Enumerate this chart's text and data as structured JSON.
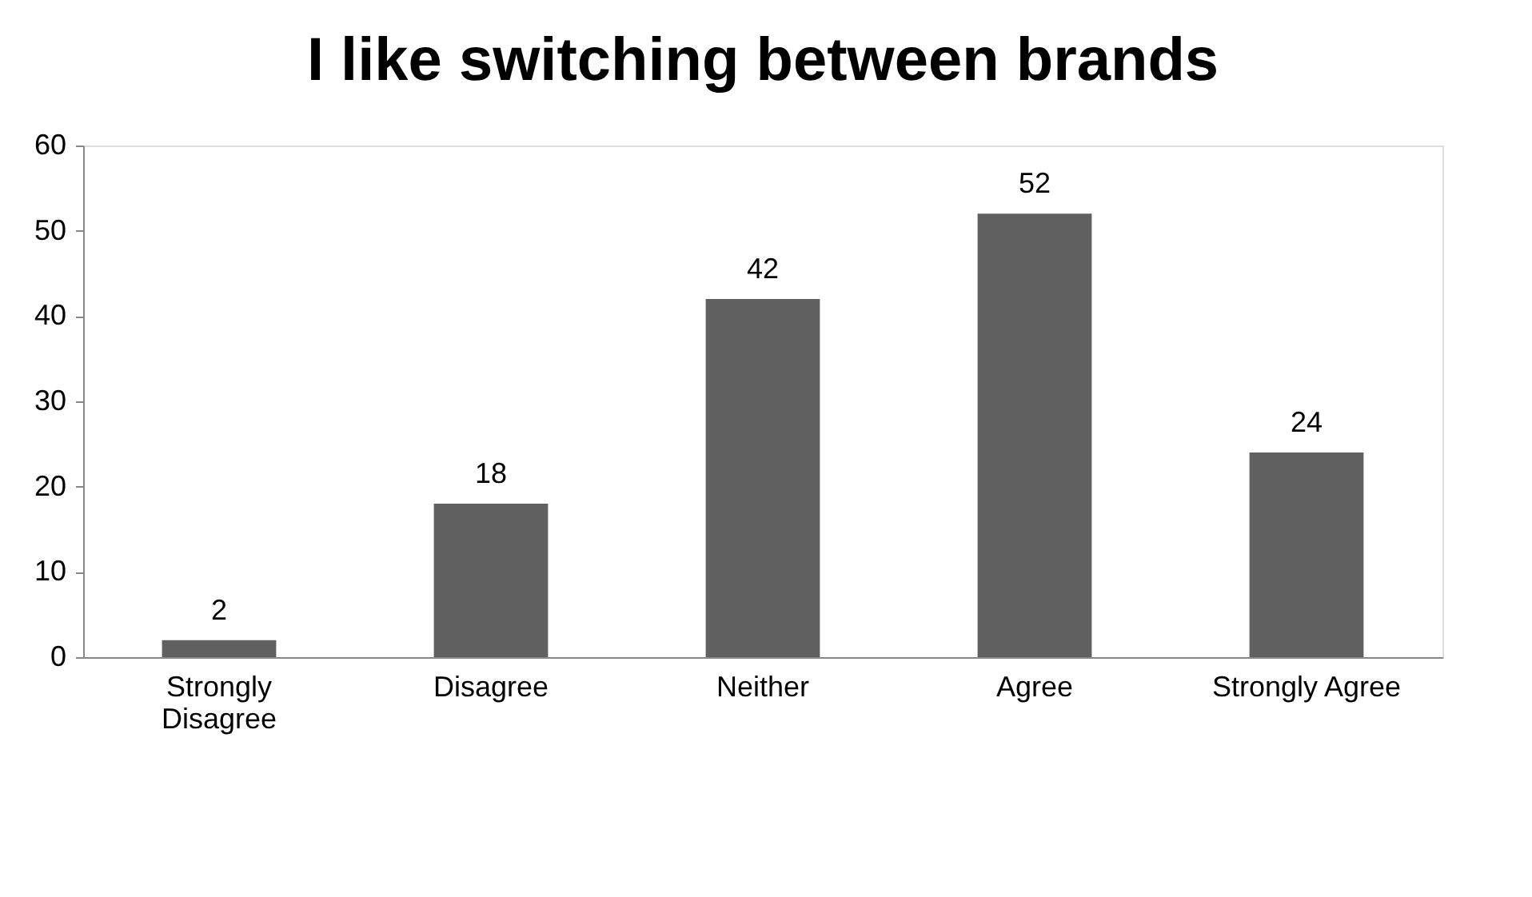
{
  "chart_data": {
    "type": "bar",
    "title": "I like switching between brands",
    "categories": [
      "Strongly Disagree",
      "Disagree",
      "Neither",
      "Agree",
      "Strongly Agree"
    ],
    "values": [
      2,
      18,
      42,
      52,
      24
    ],
    "color": "#606060",
    "ylim": [
      0,
      60
    ],
    "yticks": [
      0,
      10,
      20,
      30,
      40,
      50,
      60
    ],
    "grid": false,
    "data_labels": true
  }
}
